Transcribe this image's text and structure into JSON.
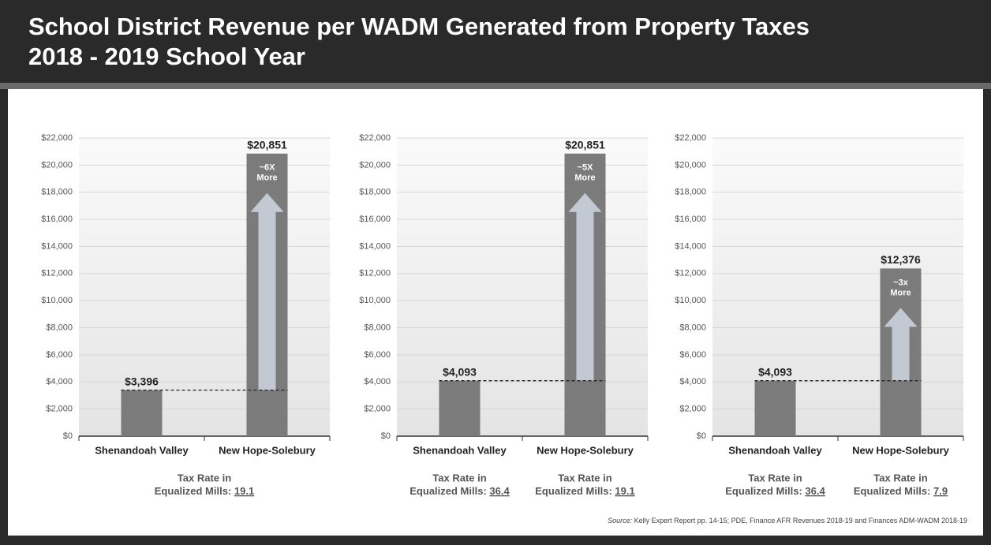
{
  "title": "School District Revenue per WADM Generated from Property Taxes",
  "subtitle": "2018 - 2019 School Year",
  "tax_rate_label": [
    "Tax Rate in",
    "Equalized Mills:"
  ],
  "source_label": "Source:",
  "source": "Kelly Expert Report pp. 14-15; PDE, Finance AFR Revenues 2018-19 and Finances ADM-WADM 2018-19",
  "chart_data": [
    {
      "type": "bar",
      "categories": [
        "Shenandoah Valley",
        "New Hope-Solebury"
      ],
      "values": [
        3396,
        20851
      ],
      "value_labels": [
        "$3,396",
        "$20,851"
      ],
      "color": "#7b7b7b",
      "annotation": [
        "~6X",
        "More"
      ],
      "tax_rates": [
        19.1
      ],
      "ylim": [
        0,
        22000
      ],
      "yticks": [
        {
          "value": 0,
          "label": "$0"
        },
        {
          "value": 2000,
          "label": "$2,000"
        },
        {
          "value": 4000,
          "label": "$4,000"
        },
        {
          "value": 6000,
          "label": "$6,000"
        },
        {
          "value": 8000,
          "label": "$8,000"
        },
        {
          "value": 10000,
          "label": "$10,000"
        },
        {
          "value": 12000,
          "label": "$12,000"
        },
        {
          "value": 14000,
          "label": "$14,000"
        },
        {
          "value": 16000,
          "label": "$16,000"
        },
        {
          "value": 18000,
          "label": "$18,000"
        },
        {
          "value": 20000,
          "label": "$20,000"
        },
        {
          "value": 22000,
          "label": "$22,000"
        }
      ],
      "grid": true
    },
    {
      "type": "bar",
      "categories": [
        "Shenandoah Valley",
        "New Hope-Solebury"
      ],
      "values": [
        4093,
        20851
      ],
      "value_labels": [
        "$4,093",
        "$20,851"
      ],
      "color": "#7b7b7b",
      "annotation": [
        "~5X",
        "More"
      ],
      "tax_rates": [
        36.4,
        19.1
      ],
      "ylim": [
        0,
        22000
      ],
      "yticks": [
        {
          "value": 0,
          "label": "$0"
        },
        {
          "value": 2000,
          "label": "$2,000"
        },
        {
          "value": 4000,
          "label": "$4,000"
        },
        {
          "value": 6000,
          "label": "$6,000"
        },
        {
          "value": 8000,
          "label": "$8,000"
        },
        {
          "value": 10000,
          "label": "$10,000"
        },
        {
          "value": 12000,
          "label": "$12,000"
        },
        {
          "value": 14000,
          "label": "$14,000"
        },
        {
          "value": 16000,
          "label": "$16,000"
        },
        {
          "value": 18000,
          "label": "$18,000"
        },
        {
          "value": 20000,
          "label": "$20,000"
        },
        {
          "value": 22000,
          "label": "$22,000"
        }
      ],
      "grid": true
    },
    {
      "type": "bar",
      "categories": [
        "Shenandoah Valley",
        "New Hope-Solebury"
      ],
      "values": [
        4093,
        12376
      ],
      "value_labels": [
        "$4,093",
        "$12,376"
      ],
      "color": "#7b7b7b",
      "annotation": [
        "~3x",
        "More"
      ],
      "tax_rates": [
        36.4,
        7.9
      ],
      "ylim": [
        0,
        22000
      ],
      "yticks": [
        {
          "value": 0,
          "label": "$0"
        },
        {
          "value": 2000,
          "label": "$2,000"
        },
        {
          "value": 4000,
          "label": "$4,000"
        },
        {
          "value": 6000,
          "label": "$6,000"
        },
        {
          "value": 8000,
          "label": "$8,000"
        },
        {
          "value": 10000,
          "label": "$10,000"
        },
        {
          "value": 12000,
          "label": "$12,000"
        },
        {
          "value": 14000,
          "label": "$14,000"
        },
        {
          "value": 16000,
          "label": "$16,000"
        },
        {
          "value": 18000,
          "label": "$18,000"
        },
        {
          "value": 20000,
          "label": "$20,000"
        },
        {
          "value": 22000,
          "label": "$22,000"
        }
      ],
      "grid": true
    }
  ]
}
